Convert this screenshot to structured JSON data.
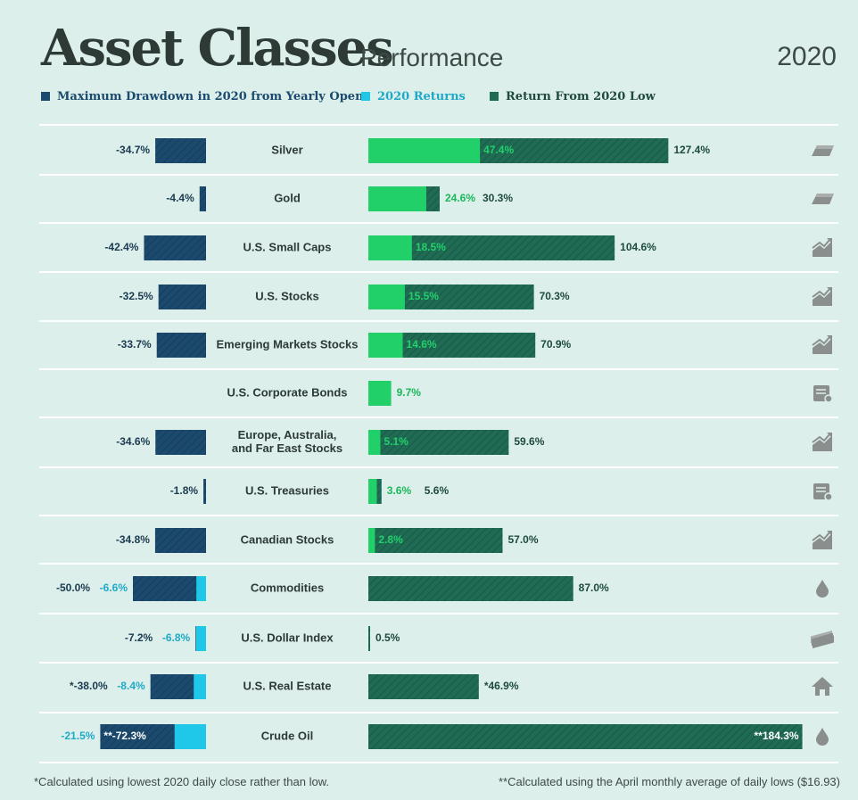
{
  "header": {
    "title": "Asset Classes",
    "subtitle": "Performance",
    "year": "2020"
  },
  "legend": [
    {
      "label": "Maximum Drawdown in 2020 from Yearly Open",
      "color": "#1b4a6e"
    },
    {
      "label": "2020 Returns",
      "color": "#1fc7e8"
    },
    {
      "label": "Return From 2020 Low",
      "color": "#1f6b54"
    }
  ],
  "footnotes": {
    "left": "*Calculated using lowest 2020 daily close rather than low.",
    "right": "**Calculated using the April monthly average of daily lows ($16.93)"
  },
  "colors": {
    "drawdown": "#1b4a6e",
    "negative_return": "#1fc7e8",
    "positive_return": "#22d06a",
    "return_from_low": "#1f6b54",
    "background": "#dcefeb",
    "row_divider": "#ffffff"
  },
  "chart_data": {
    "type": "bar",
    "categories": [
      "Silver",
      "Gold",
      "U.S. Small Caps",
      "U.S. Stocks",
      "Emerging Markets Stocks",
      "U.S. Corporate Bonds",
      "Europe, Australia, and Far East Stocks",
      "U.S. Treasuries",
      "Canadian Stocks",
      "Commodities",
      "U.S. Dollar Index",
      "U.S. Real Estate",
      "Crude Oil"
    ],
    "rows": [
      {
        "name": "Silver",
        "drawdown": -34.7,
        "drawdown_label": "-34.7%",
        "ret": 47.4,
        "ret_label": "47.4%",
        "from_low": 127.4,
        "from_low_label": "127.4%",
        "icon": "bullion-bar-icon"
      },
      {
        "name": "Gold",
        "drawdown": -4.4,
        "drawdown_label": "-4.4%",
        "ret": 24.6,
        "ret_label": "24.6%",
        "from_low": 30.3,
        "from_low_label": "30.3%",
        "icon": "bullion-bar-icon"
      },
      {
        "name": "U.S. Small Caps",
        "drawdown": -42.4,
        "drawdown_label": "-42.4%",
        "ret": 18.5,
        "ret_label": "18.5%",
        "from_low": 104.6,
        "from_low_label": "104.6%",
        "icon": "stock-chart-icon"
      },
      {
        "name": "U.S. Stocks",
        "drawdown": -32.5,
        "drawdown_label": "-32.5%",
        "ret": 15.5,
        "ret_label": "15.5%",
        "from_low": 70.3,
        "from_low_label": "70.3%",
        "icon": "stock-chart-icon"
      },
      {
        "name": "Emerging Markets Stocks",
        "drawdown": -33.7,
        "drawdown_label": "-33.7%",
        "ret": 14.6,
        "ret_label": "14.6%",
        "from_low": 70.9,
        "from_low_label": "70.9%",
        "icon": "stock-chart-icon"
      },
      {
        "name": "U.S. Corporate Bonds",
        "drawdown": null,
        "drawdown_label": "",
        "ret": 9.7,
        "ret_label": "9.7%",
        "from_low": null,
        "from_low_label": "",
        "icon": "bond-certificate-icon"
      },
      {
        "name": "Europe, Australia, and Far East Stocks",
        "name_lines": [
          "Europe, Australia,",
          "and Far East Stocks"
        ],
        "drawdown": -34.6,
        "drawdown_label": "-34.6%",
        "ret": 5.1,
        "ret_label": "5.1%",
        "from_low": 59.6,
        "from_low_label": "59.6%",
        "icon": "stock-chart-icon"
      },
      {
        "name": "U.S. Treasuries",
        "drawdown": -1.8,
        "drawdown_label": "-1.8%",
        "ret": 3.6,
        "ret_label": "3.6%",
        "from_low": 5.6,
        "from_low_label": "5.6%",
        "icon": "bond-certificate-icon"
      },
      {
        "name": "Canadian Stocks",
        "drawdown": -34.8,
        "drawdown_label": "-34.8%",
        "ret": 2.8,
        "ret_label": "2.8%",
        "from_low": 57.0,
        "from_low_label": "57.0%",
        "icon": "stock-chart-icon"
      },
      {
        "name": "Commodities",
        "drawdown": -50.0,
        "drawdown_label": "-50.0%",
        "ret": -6.6,
        "ret_label": "-6.6%",
        "from_low": 87.0,
        "from_low_label": "87.0%",
        "icon": "oil-drop-icon"
      },
      {
        "name": "U.S. Dollar Index",
        "drawdown": -7.2,
        "drawdown_label": "-7.2%",
        "ret": -6.8,
        "ret_label": "-6.8%",
        "from_low": 0.5,
        "from_low_label": "0.5%",
        "icon": "cash-stack-icon"
      },
      {
        "name": "U.S. Real Estate",
        "drawdown": -38.0,
        "drawdown_label": "*-38.0%",
        "ret": -8.4,
        "ret_label": "-8.4%",
        "from_low": 46.9,
        "from_low_label": "*46.9%",
        "icon": "house-icon"
      },
      {
        "name": "Crude Oil",
        "drawdown": -72.3,
        "drawdown_label": "**-72.3%",
        "ret": -21.5,
        "ret_label": "-21.5%",
        "from_low": 184.3,
        "from_low_label": "**184.3%",
        "icon": "oil-drop-icon"
      }
    ]
  }
}
